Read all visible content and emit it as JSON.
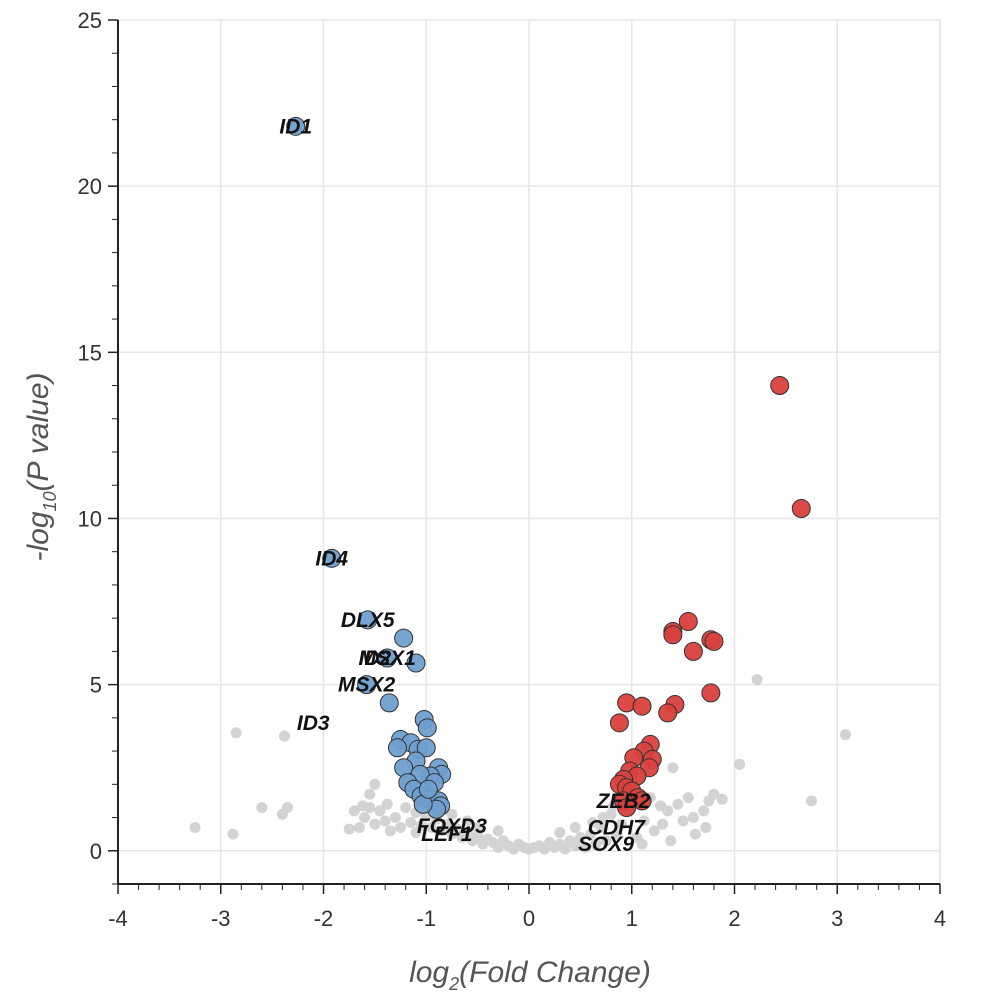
{
  "chart_data": {
    "type": "scatter",
    "title": "",
    "xlabel": {
      "prefix": "log",
      "sub": "2",
      "suffix": "(Fold Change)"
    },
    "ylabel": {
      "prefix": "-log",
      "sub": "10",
      "suffix": "(P value)"
    },
    "xlim": [
      -4,
      4
    ],
    "ylim": [
      -1,
      25
    ],
    "xticks": [
      -4,
      -3,
      -2,
      -1,
      0,
      1,
      2,
      3,
      4
    ],
    "yticks": [
      0,
      5,
      10,
      15,
      20,
      25
    ],
    "grid": true,
    "colors": {
      "down": "#6e9fcf",
      "up": "#d9403c",
      "ns": "#d3d3d3",
      "outline": "#333333",
      "grid": "#e6e6e6",
      "axis": "#222222"
    },
    "series": [
      {
        "group": "ns",
        "points": [
          [
            -3.25,
            0.7
          ],
          [
            -2.88,
            0.5
          ],
          [
            -2.85,
            3.55
          ],
          [
            -2.6,
            1.3
          ],
          [
            -2.4,
            1.1
          ],
          [
            -2.35,
            1.3
          ],
          [
            -2.38,
            3.45
          ],
          [
            2.22,
            5.15
          ],
          [
            2.05,
            2.6
          ],
          [
            3.08,
            3.5
          ],
          [
            2.75,
            1.5
          ],
          [
            1.88,
            1.55
          ],
          [
            1.8,
            1.7
          ],
          [
            1.75,
            1.5
          ],
          [
            1.7,
            1.2
          ],
          [
            1.72,
            0.7
          ],
          [
            1.6,
            1.0
          ],
          [
            1.45,
            1.4
          ],
          [
            1.35,
            1.2
          ],
          [
            1.3,
            0.8
          ],
          [
            1.4,
            2.5
          ],
          [
            1.22,
            0.6
          ],
          [
            1.18,
            1.6
          ],
          [
            1.12,
            0.9
          ],
          [
            1.05,
            0.4
          ],
          [
            0.98,
            1.2
          ],
          [
            0.9,
            0.8
          ],
          [
            0.85,
            0.5
          ],
          [
            0.8,
            1.1
          ],
          [
            0.75,
            0.3
          ],
          [
            0.7,
            0.7
          ],
          [
            0.65,
            0.2
          ],
          [
            0.6,
            0.5
          ],
          [
            0.55,
            0.1
          ],
          [
            0.5,
            0.4
          ],
          [
            0.45,
            0.15
          ],
          [
            0.4,
            0.3
          ],
          [
            0.35,
            0.05
          ],
          [
            0.3,
            0.2
          ],
          [
            0.25,
            0.1
          ],
          [
            0.2,
            0.25
          ],
          [
            0.15,
            0.05
          ],
          [
            0.1,
            0.15
          ],
          [
            0.05,
            0.1
          ],
          [
            0.0,
            0.05
          ],
          [
            -0.05,
            0.1
          ],
          [
            -0.1,
            0.2
          ],
          [
            -0.15,
            0.05
          ],
          [
            -0.2,
            0.15
          ],
          [
            -0.25,
            0.3
          ],
          [
            -0.3,
            0.1
          ],
          [
            -0.35,
            0.25
          ],
          [
            -0.4,
            0.35
          ],
          [
            -0.45,
            0.2
          ],
          [
            -0.5,
            0.45
          ],
          [
            -0.55,
            0.3
          ],
          [
            -0.6,
            0.55
          ],
          [
            -0.65,
            0.4
          ],
          [
            -0.7,
            0.65
          ],
          [
            -0.75,
            0.5
          ],
          [
            -0.8,
            0.8
          ],
          [
            -0.85,
            0.6
          ],
          [
            -0.9,
            0.95
          ],
          [
            -0.95,
            0.7
          ],
          [
            -1.0,
            1.05
          ],
          [
            -1.05,
            0.75
          ],
          [
            -1.1,
            1.15
          ],
          [
            -1.15,
            0.85
          ],
          [
            -1.2,
            1.3
          ],
          [
            -1.25,
            0.7
          ],
          [
            -1.3,
            1.0
          ],
          [
            -1.35,
            0.6
          ],
          [
            -1.4,
            0.9
          ],
          [
            -1.45,
            1.2
          ],
          [
            -1.5,
            0.8
          ],
          [
            -1.55,
            1.3
          ],
          [
            -1.6,
            1.0
          ],
          [
            -1.65,
            0.7
          ],
          [
            -1.7,
            1.2
          ],
          [
            -1.75,
            0.65
          ],
          [
            -1.5,
            2.0
          ],
          [
            -1.55,
            1.7
          ],
          [
            -1.2,
            2.1
          ],
          [
            -1.05,
            1.8
          ],
          [
            -0.85,
            1.3
          ],
          [
            -0.75,
            1.1
          ],
          [
            -0.6,
            0.9
          ],
          [
            0.62,
            0.85
          ],
          [
            0.72,
            1.0
          ],
          [
            0.95,
            1.5
          ],
          [
            1.28,
            1.35
          ],
          [
            1.5,
            0.9
          ],
          [
            1.62,
            0.5
          ],
          [
            1.38,
            0.3
          ],
          [
            1.1,
            0.2
          ],
          [
            -0.3,
            0.6
          ],
          [
            0.3,
            0.55
          ],
          [
            -0.5,
            0.7
          ],
          [
            0.45,
            0.7
          ],
          [
            0.82,
            1.35
          ],
          [
            1.55,
            1.6
          ],
          [
            -1.38,
            1.4
          ],
          [
            -1.62,
            1.35
          ],
          [
            -0.95,
            1.2
          ],
          [
            -1.1,
            0.55
          ]
        ]
      },
      {
        "group": "down",
        "points": [
          [
            -2.27,
            21.8
          ],
          [
            -1.92,
            8.8
          ],
          [
            -1.57,
            6.95
          ],
          [
            -1.22,
            6.4
          ],
          [
            -1.38,
            5.8
          ],
          [
            -1.1,
            5.65
          ],
          [
            -1.58,
            5.0
          ],
          [
            -1.36,
            4.45
          ],
          [
            -1.02,
            3.95
          ],
          [
            -0.99,
            3.7
          ],
          [
            -1.25,
            3.35
          ],
          [
            -1.15,
            3.25
          ],
          [
            -1.28,
            3.1
          ],
          [
            -1.08,
            3.05
          ],
          [
            -1.0,
            3.1
          ],
          [
            -1.1,
            2.7
          ],
          [
            -1.22,
            2.5
          ],
          [
            -0.88,
            2.5
          ],
          [
            -0.85,
            2.3
          ],
          [
            -0.96,
            2.25
          ],
          [
            -1.06,
            2.3
          ],
          [
            -0.92,
            2.05
          ],
          [
            -1.18,
            2.05
          ],
          [
            -1.12,
            1.85
          ],
          [
            -1.05,
            1.65
          ],
          [
            -0.96,
            1.55
          ],
          [
            -0.88,
            1.5
          ],
          [
            -0.86,
            1.35
          ],
          [
            -0.9,
            1.25
          ],
          [
            -1.03,
            1.4
          ],
          [
            -0.98,
            1.85
          ]
        ]
      },
      {
        "group": "up",
        "points": [
          [
            2.44,
            14.0
          ],
          [
            2.65,
            10.3
          ],
          [
            1.55,
            6.9
          ],
          [
            1.4,
            6.6
          ],
          [
            1.4,
            6.5
          ],
          [
            1.77,
            6.35
          ],
          [
            1.8,
            6.3
          ],
          [
            1.6,
            6.0
          ],
          [
            1.77,
            4.75
          ],
          [
            1.42,
            4.4
          ],
          [
            1.35,
            4.15
          ],
          [
            0.95,
            4.45
          ],
          [
            1.1,
            4.35
          ],
          [
            0.88,
            3.85
          ],
          [
            1.18,
            3.2
          ],
          [
            1.12,
            3.0
          ],
          [
            1.02,
            2.8
          ],
          [
            1.2,
            2.75
          ],
          [
            1.17,
            2.5
          ],
          [
            0.98,
            2.4
          ],
          [
            1.05,
            2.25
          ],
          [
            0.92,
            2.15
          ],
          [
            0.88,
            2.0
          ],
          [
            0.95,
            1.9
          ],
          [
            1.0,
            1.8
          ],
          [
            1.06,
            1.6
          ],
          [
            0.92,
            1.5
          ],
          [
            1.1,
            1.5
          ],
          [
            0.95,
            1.3
          ]
        ]
      }
    ],
    "annotations": [
      {
        "label": "ID1",
        "x": -2.27,
        "y": 21.8
      },
      {
        "label": "ID4",
        "x": -1.92,
        "y": 8.8
      },
      {
        "label": "DLX5",
        "x": -1.57,
        "y": 6.95
      },
      {
        "label": "MSX1",
        "x": -1.38,
        "y": 5.8
      },
      {
        "label": "ID2",
        "x": -1.5,
        "y": 5.8
      },
      {
        "label": "MSX2",
        "x": -1.58,
        "y": 5.0
      },
      {
        "label": "ID3",
        "x": -2.1,
        "y": 3.85
      },
      {
        "label": "ZEB2",
        "x": 0.92,
        "y": 1.5
      },
      {
        "label": "CDH7",
        "x": 0.85,
        "y": 0.7
      },
      {
        "label": "FOXD3",
        "x": -0.75,
        "y": 0.75
      },
      {
        "label": "LEF1",
        "x": -0.8,
        "y": 0.5
      },
      {
        "label": "SOX9",
        "x": 0.75,
        "y": 0.2
      }
    ]
  }
}
